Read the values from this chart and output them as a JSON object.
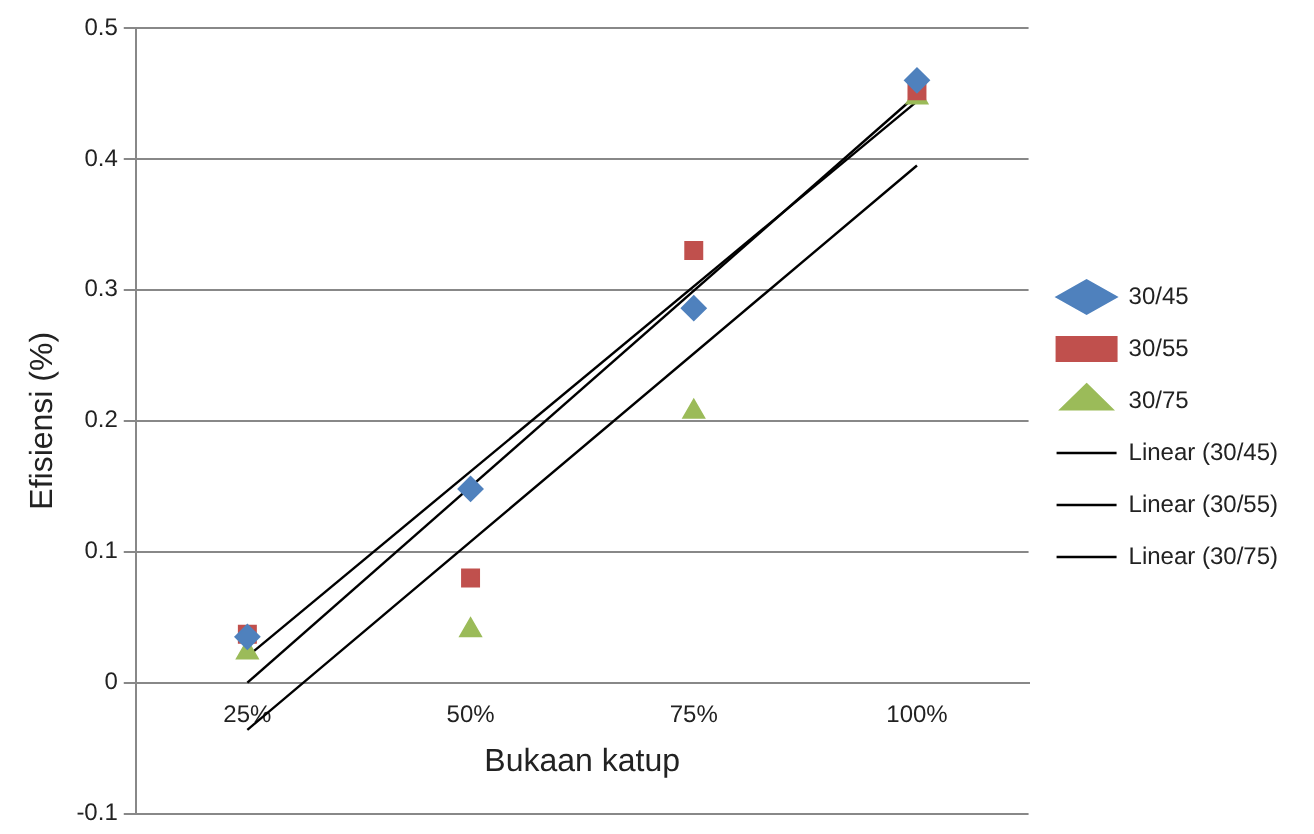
{
  "chart_data": {
    "type": "scatter",
    "xlabel": "Bukaan katup",
    "ylabel": "Efisiensi (%)",
    "categories": [
      "25%",
      "50%",
      "75%",
      "100%"
    ],
    "series": [
      {
        "name": "30/45",
        "color": "#4f81bd",
        "marker": "diamond",
        "values": [
          0.035,
          0.148,
          0.286,
          0.46
        ]
      },
      {
        "name": "30/55",
        "color": "#c0504d",
        "marker": "square",
        "values": [
          0.037,
          0.08,
          0.33,
          0.452
        ]
      },
      {
        "name": "30/75",
        "color": "#9bbb59",
        "marker": "triangle",
        "values": [
          0.023,
          0.04,
          0.207,
          0.447
        ]
      },
      {
        "name": "Linear (30/45)",
        "type": "line",
        "color": "#000000",
        "marker": "none",
        "x": [
          "25%",
          "100%"
        ],
        "values": [
          0.02,
          0.444
        ]
      },
      {
        "name": "Linear (30/55)",
        "type": "line",
        "color": "#000000",
        "marker": "none",
        "x": [
          "25%",
          "100%"
        ],
        "values": [
          0,
          0.449
        ]
      },
      {
        "name": "Linear (30/75)",
        "type": "line",
        "color": "#000000",
        "marker": "none",
        "x": [
          "25%",
          "100%"
        ],
        "values": [
          -0.036,
          0.395
        ]
      }
    ],
    "ylim": [
      -0.1,
      0.5
    ],
    "yticks": [
      -0.1,
      0,
      0.1,
      0.2,
      0.3,
      0.4,
      0.5
    ],
    "grid": "y",
    "legend": "right"
  }
}
